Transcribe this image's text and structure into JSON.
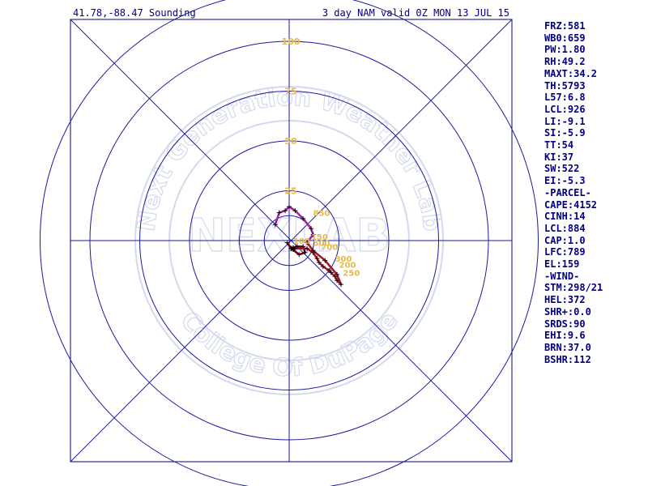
{
  "header": {
    "location": "41.78,-88.47 Sounding",
    "valid": "3 day NAM valid 0Z MON 13 JUL 15"
  },
  "watermark": {
    "top_text": "Next Generation Weather Lab",
    "bottom_text": "College Of DuPage",
    "center_text": "NEXLAB"
  },
  "params": [
    "FRZ:581",
    "WB0:659",
    "PW:1.80",
    "RH:49.2",
    "MAXT:34.2",
    "TH:5793",
    "L57:6.8",
    "LCL:926",
    "LI:-9.1",
    "SI:-5.9",
    "TT:54",
    "KI:37",
    "SW:522",
    "EI:-5.3",
    "-PARCEL-",
    "CAPE:4152",
    "CINH:14",
    "LCL:884",
    "CAP:1.0",
    "LFC:789",
    "EL:159",
    "-WIND-",
    "STM:298/21",
    "HEL:372",
    "SHR+:0.0",
    "SRDS:90",
    "EHI:9.6",
    "BRN:37.0",
    "BSHR:112"
  ],
  "colors": {
    "frame": "#000080",
    "grid": "#1a1aa0",
    "hodo_low": "#800000",
    "hodo_mid": "#a01818",
    "hodo_high": "#a020a0",
    "label": "#e8b84a",
    "watermark": "#d4d9ee"
  },
  "chart_data": {
    "type": "hodograph",
    "ring_values": [
      25,
      50,
      75,
      100
    ],
    "ring_labels": [
      "25",
      "50",
      "75",
      "100"
    ],
    "units": "knots",
    "storm_motion": {
      "u": 2,
      "v": -4
    },
    "segments": [
      {
        "color": "hodo_low",
        "points": [
          [
            -1,
            -1
          ],
          [
            1,
            -4
          ],
          [
            4,
            -3
          ],
          [
            7,
            -3
          ],
          [
            8,
            -6
          ],
          [
            5,
            -7
          ],
          [
            1,
            -4
          ]
        ]
      },
      {
        "color": "hodo_mid",
        "points": [
          [
            1,
            -4
          ],
          [
            9,
            -4
          ],
          [
            12,
            -6
          ],
          [
            14,
            -9
          ],
          [
            15,
            -11
          ],
          [
            17,
            -13
          ],
          [
            20,
            -15
          ],
          [
            21,
            -16
          ],
          [
            23,
            -18
          ],
          [
            24,
            -20
          ],
          [
            26,
            -22
          ],
          [
            24,
            -17
          ],
          [
            18,
            -10
          ],
          [
            12,
            -5
          ],
          [
            9,
            -1
          ]
        ]
      },
      {
        "color": "hodo_high",
        "points": [
          [
            9,
            -1
          ],
          [
            12,
            3
          ],
          [
            11,
            6
          ],
          [
            7,
            11
          ],
          [
            3,
            15
          ],
          [
            0,
            17
          ],
          [
            -2,
            15
          ],
          [
            -5,
            14
          ],
          [
            -7,
            8
          ]
        ]
      }
    ],
    "pressure_labels": [
      {
        "text": "100",
        "u": 2,
        "v": 0
      },
      {
        "text": "150",
        "u": 11,
        "v": 2
      },
      {
        "text": "250",
        "u": 27,
        "v": -16
      },
      {
        "text": "200",
        "u": 25,
        "v": -12
      },
      {
        "text": "300",
        "u": 23,
        "v": -9
      },
      {
        "text": "500",
        "u": 12,
        "v": -1
      },
      {
        "text": "700",
        "u": 16,
        "v": -3
      },
      {
        "text": "850",
        "u": 12,
        "v": 14
      }
    ]
  }
}
